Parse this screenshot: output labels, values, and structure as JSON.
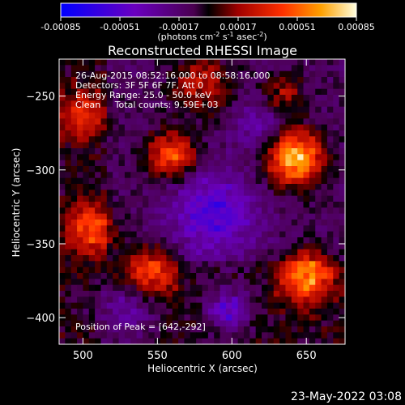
{
  "chart_data": {
    "type": "heatmap",
    "title": "Reconstructed RHESSI Image",
    "xlabel": "Heliocentric X (arcsec)",
    "ylabel": "Heliocentric Y (arcsec)",
    "xlim": [
      484,
      676
    ],
    "ylim": [
      -418,
      -225
    ],
    "xticks": [
      500,
      550,
      600,
      650
    ],
    "yticks": [
      -250,
      -300,
      -350,
      -400
    ],
    "colorbar": {
      "min": -0.00085,
      "max": 0.00085,
      "ticks": [
        "-0.00085",
        "-0.00051",
        "-0.00017",
        "0.00017",
        "0.00051",
        "0.00085"
      ],
      "unit_main": "(photons cm",
      "unit_exp1": "-2",
      "unit_mid": " s",
      "unit_exp2": "-1",
      "unit_mid2": " asec",
      "unit_exp3": "-2",
      "unit_end": ")"
    },
    "info_lines": [
      "26-Aug-2015 08:52:16.000 to 08:58:16.000",
      "Detectors: 3F 5F 6F 7F, Att 0",
      "Energy Range: 25.0 - 50.0 keV",
      "Clean     Total counts: 9.59E+03"
    ],
    "peak_label": "Position of Peak = [642,-292]",
    "sources": [
      {
        "x": 642,
        "y": -292,
        "amplitude": 0.00085,
        "sigma": 13
      },
      {
        "x": 560,
        "y": -290,
        "amplitude": 0.0006,
        "sigma": 11
      },
      {
        "x": 650,
        "y": -372,
        "amplitude": 0.00065,
        "sigma": 12
      },
      {
        "x": 505,
        "y": -340,
        "amplitude": 0.00045,
        "sigma": 12
      },
      {
        "x": 545,
        "y": -368,
        "amplitude": 0.0005,
        "sigma": 12
      },
      {
        "x": 500,
        "y": -262,
        "amplitude": 0.0004,
        "sigma": 11
      },
      {
        "x": 580,
        "y": -242,
        "amplitude": 0.00035,
        "sigma": 14
      },
      {
        "x": 635,
        "y": -250,
        "amplitude": 0.0003,
        "sigma": 10
      }
    ],
    "negative_regions": [
      {
        "x": 588,
        "y": -330,
        "amplitude": -0.00045,
        "sigma": 20
      },
      {
        "x": 598,
        "y": -395,
        "amplitude": -0.00045,
        "sigma": 10
      },
      {
        "x": 530,
        "y": -395,
        "amplitude": -0.0003,
        "sigma": 14
      },
      {
        "x": 620,
        "y": -270,
        "amplitude": -0.00025,
        "sigma": 12
      }
    ]
  },
  "footer_date": "23-May-2022 03:08"
}
